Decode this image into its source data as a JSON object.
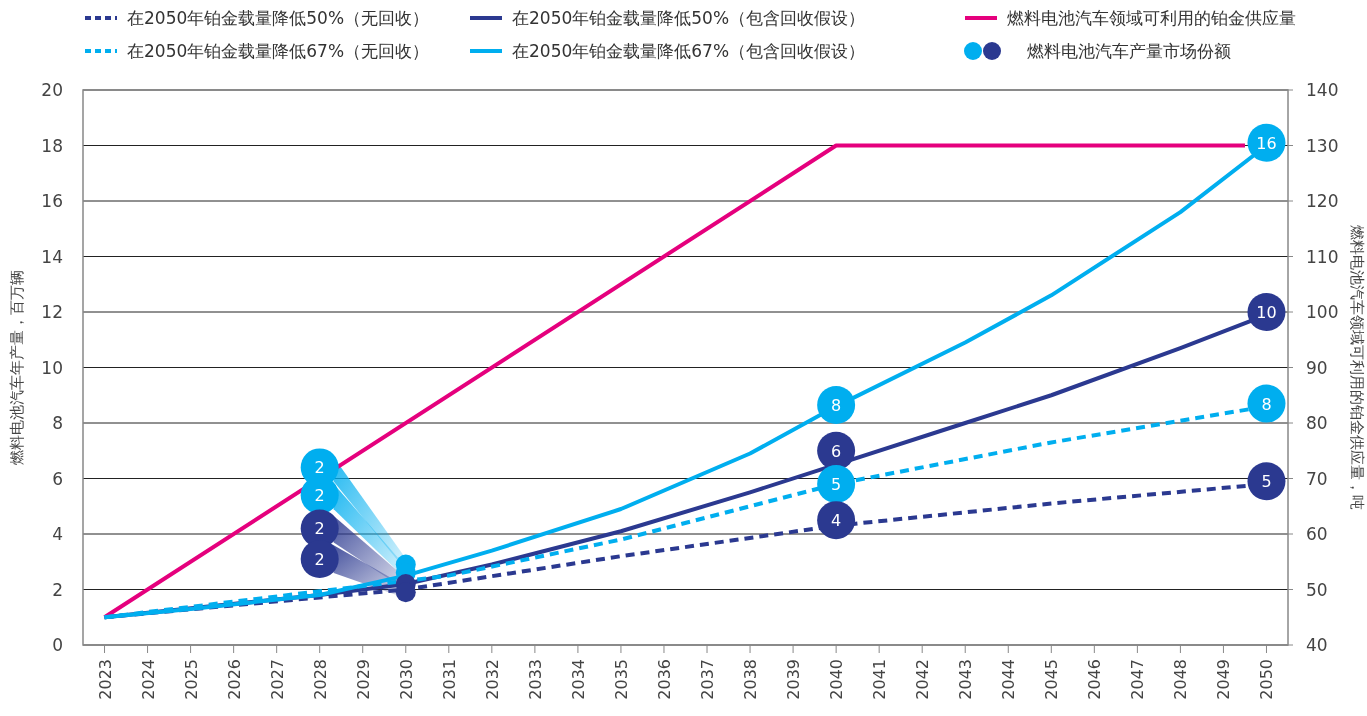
{
  "chart_data": {
    "type": "line",
    "ylabel": "燃料电池汽车年产量，百万辆",
    "y2label": "燃料电池汽车领域可利用的铂金供应量，吨",
    "xlim": [
      2022.5,
      2050.5
    ],
    "xticks": [
      2023,
      2024,
      2025,
      2026,
      2027,
      2028,
      2029,
      2030,
      2031,
      2032,
      2033,
      2034,
      2035,
      2036,
      2037,
      2038,
      2039,
      2040,
      2041,
      2042,
      2043,
      2044,
      2045,
      2046,
      2047,
      2048,
      2049,
      2050
    ],
    "ylim": [
      0,
      20
    ],
    "yticks": [
      0,
      2,
      4,
      6,
      8,
      10,
      12,
      14,
      16,
      18,
      20
    ],
    "y2lim": [
      40,
      140
    ],
    "y2ticks": [
      40,
      50,
      60,
      70,
      80,
      90,
      100,
      110,
      120,
      130,
      140
    ],
    "grid": "y",
    "legend": "top",
    "annotations": [
      {
        "text": "2",
        "x": 2028,
        "y": 6.4
      },
      {
        "text": "2",
        "x": 2028,
        "y": 5.4
      },
      {
        "text": "2",
        "x": 2028,
        "y": 4.2
      },
      {
        "text": "2",
        "x": 2028,
        "y": 3.1
      },
      {
        "text": "8",
        "x": 2040,
        "y": 8.65
      },
      {
        "text": "6",
        "x": 2040,
        "y": 7.0
      },
      {
        "text": "5",
        "x": 2040,
        "y": 5.8
      },
      {
        "text": "4",
        "x": 2040,
        "y": 4.5
      },
      {
        "text": "16",
        "x": 2050,
        "y": 18.1
      },
      {
        "text": "10",
        "x": 2050,
        "y": 12.0
      },
      {
        "text": "8",
        "x": 2050,
        "y": 8.7
      },
      {
        "text": "5",
        "x": 2050,
        "y": 5.9
      }
    ],
    "series": [
      {
        "name": "在2050年铂金载量降低50%（无回收）",
        "color": "#2b3990",
        "line_style": "dashed",
        "x": [
          2023,
          2030,
          2035,
          2040,
          2045,
          2050
        ],
        "values": [
          1,
          2.0,
          3.2,
          4.3,
          5.1,
          5.8
        ]
      },
      {
        "name": "在2050年铂金载量降低50%（包含回收假设）",
        "color": "#2b3990",
        "line_style": "solid",
        "x": [
          2023,
          2028,
          2030,
          2032,
          2035,
          2038,
          2040,
          2043,
          2045,
          2048,
          2050
        ],
        "values": [
          1,
          1.8,
          2.2,
          2.9,
          4.1,
          5.5,
          6.5,
          8.0,
          9.0,
          10.7,
          11.9
        ]
      },
      {
        "name": "燃料电池汽车领域可利用的铂金供应量",
        "color": "#e5007d",
        "line_style": "solid",
        "axis": "y2",
        "x": [
          2023,
          2040,
          2049.5
        ],
        "values": [
          45,
          130,
          130
        ]
      },
      {
        "name": "在2050年铂金载量降低67%（无回收）",
        "color": "#00aeef",
        "line_style": "dashed",
        "x": [
          2023,
          2031,
          2035,
          2040,
          2045,
          2050
        ],
        "values": [
          1,
          2.5,
          3.8,
          5.8,
          7.3,
          8.6
        ]
      },
      {
        "name": "在2050年铂金载量降低67%（包含回收假设）",
        "color": "#00aeef",
        "line_style": "solid",
        "x": [
          2023,
          2025,
          2028,
          2030,
          2032,
          2035,
          2038,
          2040,
          2043,
          2045,
          2048,
          2050
        ],
        "values": [
          1,
          1.3,
          1.8,
          2.5,
          3.4,
          4.9,
          6.9,
          8.6,
          10.9,
          12.6,
          15.6,
          18.0
        ]
      },
      {
        "name": "燃料电池汽车产量市场份额",
        "type": "scatter",
        "marker": "circle",
        "x": [
          2028,
          2028,
          2028,
          2028,
          2040,
          2040,
          2040,
          2040,
          2050,
          2050,
          2050,
          2050
        ],
        "values": [
          6.4,
          5.4,
          4.2,
          3.1,
          8.65,
          7.0,
          5.8,
          4.5,
          18.1,
          12.0,
          8.7,
          5.9
        ],
        "colors": [
          "#00aeef",
          "#00aeef",
          "#2b3990",
          "#2b3990",
          "#00aeef",
          "#2b3990",
          "#00aeef",
          "#2b3990",
          "#00aeef",
          "#2b3990",
          "#00aeef",
          "#2b3990"
        ]
      },
      {
        "type": "scatter",
        "marker": "circle",
        "x": [
          2030,
          2030,
          2030,
          2030
        ],
        "values": [
          2.9,
          2.6,
          2.2,
          1.9
        ],
        "colors": [
          "#00aeef",
          "#00aeef",
          "#2b3990",
          "#2b3990"
        ]
      }
    ]
  }
}
